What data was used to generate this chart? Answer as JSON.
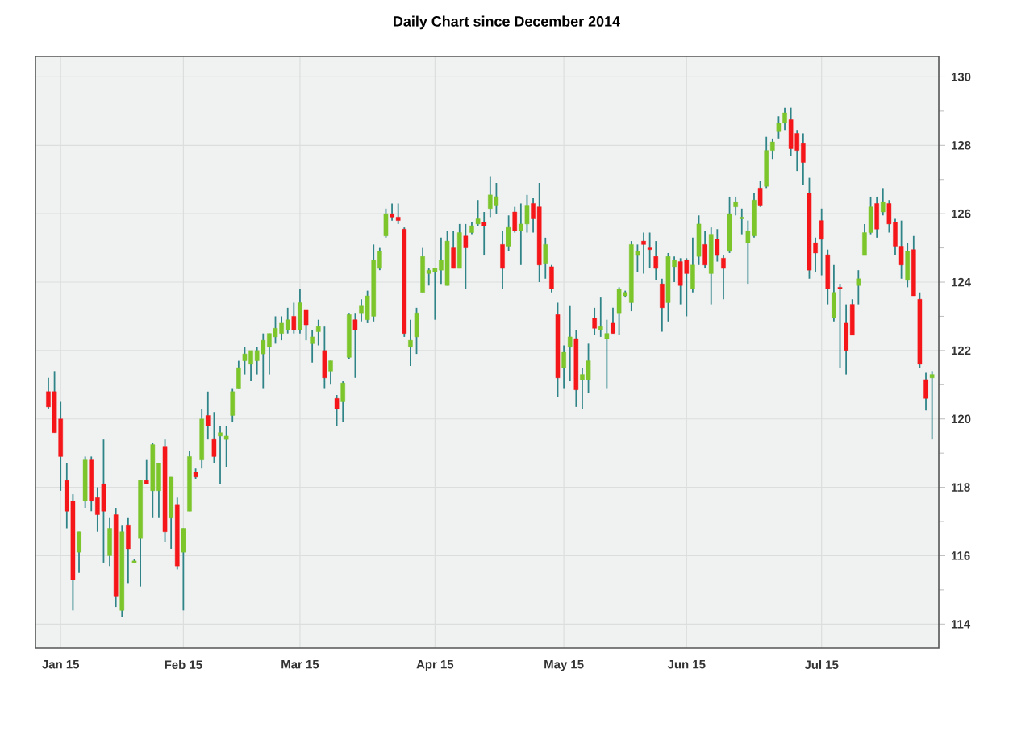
{
  "chart_data": {
    "type": "candlestick",
    "title": "Daily Chart since December 2014",
    "categories": [
      null,
      null,
      "Jan 15",
      null,
      null,
      null,
      null,
      null,
      null,
      null,
      null,
      null,
      null,
      null,
      null,
      null,
      null,
      null,
      null,
      null,
      null,
      null,
      "Feb 15",
      null,
      null,
      null,
      null,
      null,
      null,
      null,
      null,
      null,
      null,
      null,
      null,
      null,
      null,
      null,
      null,
      null,
      null,
      "Mar 15",
      null,
      null,
      null,
      null,
      null,
      null,
      null,
      null,
      null,
      null,
      null,
      null,
      null,
      null,
      null,
      null,
      null,
      null,
      null,
      null,
      null,
      "Apr 15",
      null,
      null,
      null,
      null,
      null,
      null,
      null,
      null,
      null,
      null,
      null,
      null,
      null,
      null,
      null,
      null,
      null,
      null,
      null,
      null,
      "May 15",
      null,
      null,
      null,
      null,
      null,
      null,
      null,
      null,
      null,
      null,
      null,
      null,
      null,
      null,
      null,
      null,
      null,
      null,
      null,
      "Jun 15",
      null,
      null,
      null,
      null,
      null,
      null,
      null,
      null,
      null,
      null,
      null,
      null,
      null,
      null,
      null,
      null,
      null,
      null,
      null,
      null,
      null,
      "Jul 15",
      null,
      null,
      null,
      null,
      null,
      null,
      null,
      null,
      null,
      null,
      null,
      null,
      null,
      null,
      null,
      null,
      null,
      null
    ],
    "ohlc": [
      [
        120.8,
        121.2,
        120.3,
        120.35
      ],
      [
        120.8,
        121.4,
        119.6,
        119.6
      ],
      [
        120.0,
        120.5,
        117.9,
        118.9
      ],
      [
        118.2,
        118.7,
        116.8,
        117.3
      ],
      [
        117.6,
        117.8,
        114.4,
        115.3
      ],
      [
        116.1,
        116.7,
        115.5,
        116.7
      ],
      [
        117.6,
        118.9,
        117.4,
        118.8
      ],
      [
        118.8,
        118.9,
        117.3,
        117.6
      ],
      [
        117.7,
        118.0,
        116.7,
        117.2
      ],
      [
        118.1,
        119.4,
        115.8,
        117.3
      ],
      [
        116.0,
        117.1,
        115.7,
        116.8
      ],
      [
        117.2,
        117.4,
        114.5,
        114.8
      ],
      [
        114.4,
        116.9,
        114.2,
        116.7
      ],
      [
        116.9,
        117.1,
        115.2,
        116.2
      ],
      [
        115.8,
        115.9,
        115.8,
        115.85
      ],
      [
        116.5,
        118.2,
        115.1,
        118.2
      ],
      [
        118.2,
        118.8,
        118.1,
        118.1
      ],
      [
        117.9,
        119.3,
        117.1,
        119.25
      ],
      [
        117.9,
        118.7,
        117.1,
        118.7
      ],
      [
        119.2,
        119.4,
        116.4,
        116.7
      ],
      [
        117.1,
        118.3,
        116.2,
        118.3
      ],
      [
        117.5,
        117.7,
        115.6,
        115.7
      ],
      [
        116.1,
        116.8,
        114.4,
        116.8
      ],
      [
        117.3,
        119.05,
        117.3,
        118.9
      ],
      [
        118.45,
        118.55,
        118.25,
        118.3
      ],
      [
        118.8,
        120.3,
        118.55,
        120.0
      ],
      [
        120.1,
        120.8,
        119.4,
        119.8
      ],
      [
        119.4,
        120.2,
        118.7,
        118.9
      ],
      [
        119.5,
        119.8,
        118.1,
        119.6
      ],
      [
        119.4,
        119.8,
        118.6,
        119.5
      ],
      [
        120.1,
        120.9,
        119.9,
        120.8
      ],
      [
        120.9,
        121.7,
        120.9,
        121.5
      ],
      [
        121.7,
        122.1,
        121.3,
        121.9
      ],
      [
        121.6,
        122.0,
        121.1,
        122.0
      ],
      [
        121.7,
        122.1,
        121.3,
        122.0
      ],
      [
        121.9,
        122.5,
        120.9,
        122.3
      ],
      [
        122.1,
        122.5,
        121.3,
        122.5
      ],
      [
        122.4,
        123.0,
        122.2,
        122.65
      ],
      [
        122.5,
        123.0,
        122.3,
        122.8
      ],
      [
        122.6,
        123.25,
        122.5,
        122.9
      ],
      [
        123.0,
        123.4,
        122.5,
        122.6
      ],
      [
        122.6,
        123.8,
        122.5,
        123.4
      ],
      [
        123.2,
        123.2,
        122.3,
        122.75
      ],
      [
        122.2,
        122.6,
        121.65,
        122.4
      ],
      [
        122.55,
        122.9,
        122.15,
        122.7
      ],
      [
        122.0,
        122.7,
        120.9,
        121.2
      ],
      [
        121.4,
        121.7,
        121.0,
        121.7
      ],
      [
        120.6,
        120.7,
        119.8,
        120.3
      ],
      [
        120.5,
        121.1,
        119.9,
        121.05
      ],
      [
        121.8,
        123.1,
        121.75,
        123.05
      ],
      [
        122.9,
        123.1,
        121.2,
        122.6
      ],
      [
        123.1,
        123.5,
        122.85,
        123.3
      ],
      [
        122.9,
        123.75,
        122.8,
        123.6
      ],
      [
        123.0,
        125.1,
        122.85,
        124.65
      ],
      [
        124.4,
        125.0,
        124.35,
        124.9
      ],
      [
        125.35,
        126.15,
        125.3,
        126.0
      ],
      [
        126.0,
        126.3,
        125.8,
        125.9
      ],
      [
        125.9,
        126.3,
        125.7,
        125.8
      ],
      [
        125.55,
        125.6,
        122.4,
        122.5
      ],
      [
        122.1,
        122.9,
        121.55,
        122.3
      ],
      [
        122.4,
        123.25,
        121.9,
        123.1
      ],
      [
        123.7,
        125.0,
        123.7,
        124.75
      ],
      [
        124.25,
        124.4,
        123.9,
        124.35
      ],
      [
        124.3,
        124.4,
        122.9,
        124.4
      ],
      [
        124.35,
        125.3,
        123.95,
        124.65
      ],
      [
        123.9,
        125.5,
        123.9,
        125.2
      ],
      [
        125.0,
        125.5,
        124.4,
        124.4
      ],
      [
        124.4,
        125.7,
        124.4,
        125.45
      ],
      [
        125.35,
        125.7,
        123.8,
        125.0
      ],
      [
        125.45,
        125.75,
        125.4,
        125.65
      ],
      [
        125.7,
        126.4,
        125.65,
        125.85
      ],
      [
        125.75,
        126.05,
        124.8,
        125.65
      ],
      [
        126.15,
        127.1,
        125.9,
        126.55
      ],
      [
        126.25,
        126.9,
        126.0,
        126.5
      ],
      [
        125.1,
        125.5,
        123.8,
        124.4
      ],
      [
        125.05,
        125.95,
        124.9,
        125.6
      ],
      [
        126.05,
        126.2,
        125.45,
        125.5
      ],
      [
        125.5,
        126.3,
        124.5,
        125.7
      ],
      [
        125.7,
        126.55,
        125.45,
        126.25
      ],
      [
        126.3,
        126.45,
        125.45,
        125.85
      ],
      [
        126.2,
        126.9,
        124.0,
        124.5
      ],
      [
        124.55,
        125.3,
        124.1,
        125.1
      ],
      [
        124.45,
        124.5,
        123.7,
        123.8
      ],
      [
        123.05,
        123.4,
        120.65,
        121.2
      ],
      [
        121.5,
        122.15,
        120.9,
        121.95
      ],
      [
        122.1,
        123.3,
        121.1,
        122.4
      ],
      [
        122.35,
        122.6,
        120.35,
        120.85
      ],
      [
        121.15,
        121.5,
        120.3,
        121.3
      ],
      [
        121.15,
        122.2,
        120.75,
        121.7
      ],
      [
        122.95,
        123.25,
        122.45,
        122.65
      ],
      [
        122.6,
        123.55,
        122.4,
        122.7
      ],
      [
        122.35,
        122.9,
        120.9,
        122.5
      ],
      [
        122.8,
        123.25,
        122.5,
        122.5
      ],
      [
        123.1,
        123.85,
        122.45,
        123.8
      ],
      [
        123.6,
        123.75,
        123.55,
        123.7
      ],
      [
        123.4,
        125.2,
        123.15,
        125.1
      ],
      [
        124.8,
        125.1,
        124.3,
        124.9
      ],
      [
        125.2,
        125.45,
        124.25,
        125.1
      ],
      [
        125.0,
        125.45,
        124.4,
        124.95
      ],
      [
        124.75,
        125.2,
        124.05,
        124.4
      ],
      [
        123.95,
        124.1,
        122.55,
        123.25
      ],
      [
        123.4,
        124.85,
        122.85,
        124.75
      ],
      [
        124.45,
        124.75,
        124.0,
        124.65
      ],
      [
        124.6,
        124.7,
        123.35,
        123.9
      ],
      [
        124.65,
        124.7,
        123.0,
        124.25
      ],
      [
        123.8,
        125.3,
        123.7,
        124.5
      ],
      [
        124.75,
        125.95,
        124.5,
        125.7
      ],
      [
        125.1,
        125.5,
        124.4,
        124.5
      ],
      [
        124.25,
        125.6,
        123.35,
        125.4
      ],
      [
        125.25,
        125.55,
        124.6,
        124.8
      ],
      [
        124.7,
        124.8,
        123.5,
        124.4
      ],
      [
        124.9,
        126.5,
        124.85,
        126.0
      ],
      [
        126.2,
        126.5,
        125.95,
        126.35
      ],
      [
        125.85,
        126.15,
        125.4,
        125.9
      ],
      [
        125.15,
        125.8,
        123.95,
        125.5
      ],
      [
        125.35,
        126.6,
        125.3,
        126.4
      ],
      [
        126.75,
        126.95,
        126.2,
        126.25
      ],
      [
        126.8,
        128.25,
        126.75,
        127.85
      ],
      [
        127.85,
        128.2,
        127.6,
        128.1
      ],
      [
        128.4,
        128.85,
        128.2,
        128.65
      ],
      [
        128.65,
        129.1,
        128.45,
        128.95
      ],
      [
        128.75,
        129.1,
        127.7,
        127.9
      ],
      [
        128.35,
        128.45,
        127.25,
        127.85
      ],
      [
        128.05,
        128.35,
        126.85,
        127.5
      ],
      [
        126.6,
        127.05,
        124.1,
        124.35
      ],
      [
        125.15,
        125.3,
        124.3,
        124.85
      ],
      [
        125.8,
        126.15,
        124.2,
        125.25
      ],
      [
        124.8,
        124.95,
        123.35,
        123.8
      ],
      [
        122.95,
        124.5,
        122.85,
        123.7
      ],
      [
        123.85,
        123.95,
        121.5,
        123.8
      ],
      [
        122.8,
        123.35,
        121.3,
        122.0
      ],
      [
        123.35,
        123.5,
        122.45,
        122.45
      ],
      [
        123.9,
        124.35,
        123.35,
        124.1
      ],
      [
        124.8,
        125.7,
        124.8,
        125.45
      ],
      [
        125.45,
        126.5,
        125.4,
        126.2
      ],
      [
        126.3,
        126.5,
        125.3,
        125.55
      ],
      [
        126.05,
        126.75,
        125.95,
        126.35
      ],
      [
        126.3,
        126.4,
        125.45,
        125.7
      ],
      [
        125.75,
        125.85,
        124.8,
        125.05
      ],
      [
        125.05,
        125.8,
        124.1,
        124.5
      ],
      [
        124.05,
        125.15,
        123.85,
        124.9
      ],
      [
        124.95,
        125.35,
        123.6,
        123.6
      ],
      [
        123.5,
        123.7,
        121.5,
        121.6
      ],
      [
        121.15,
        121.35,
        120.25,
        120.6
      ],
      [
        121.2,
        121.4,
        119.4,
        121.3
      ]
    ],
    "ylim": [
      113.3,
      130.6
    ],
    "yticks": [
      114,
      {
        "value": 115,
        "label": null
      },
      116,
      {
        "value": 117,
        "label": null
      },
      118,
      {
        "value": 119,
        "label": null
      },
      120,
      {
        "value": 121,
        "label": null
      },
      122,
      {
        "value": 123,
        "label": null
      },
      124,
      {
        "value": 125,
        "label": null
      },
      126,
      {
        "value": 127,
        "label": null
      },
      128,
      {
        "value": 129,
        "label": null
      },
      130
    ],
    "grid": true
  }
}
